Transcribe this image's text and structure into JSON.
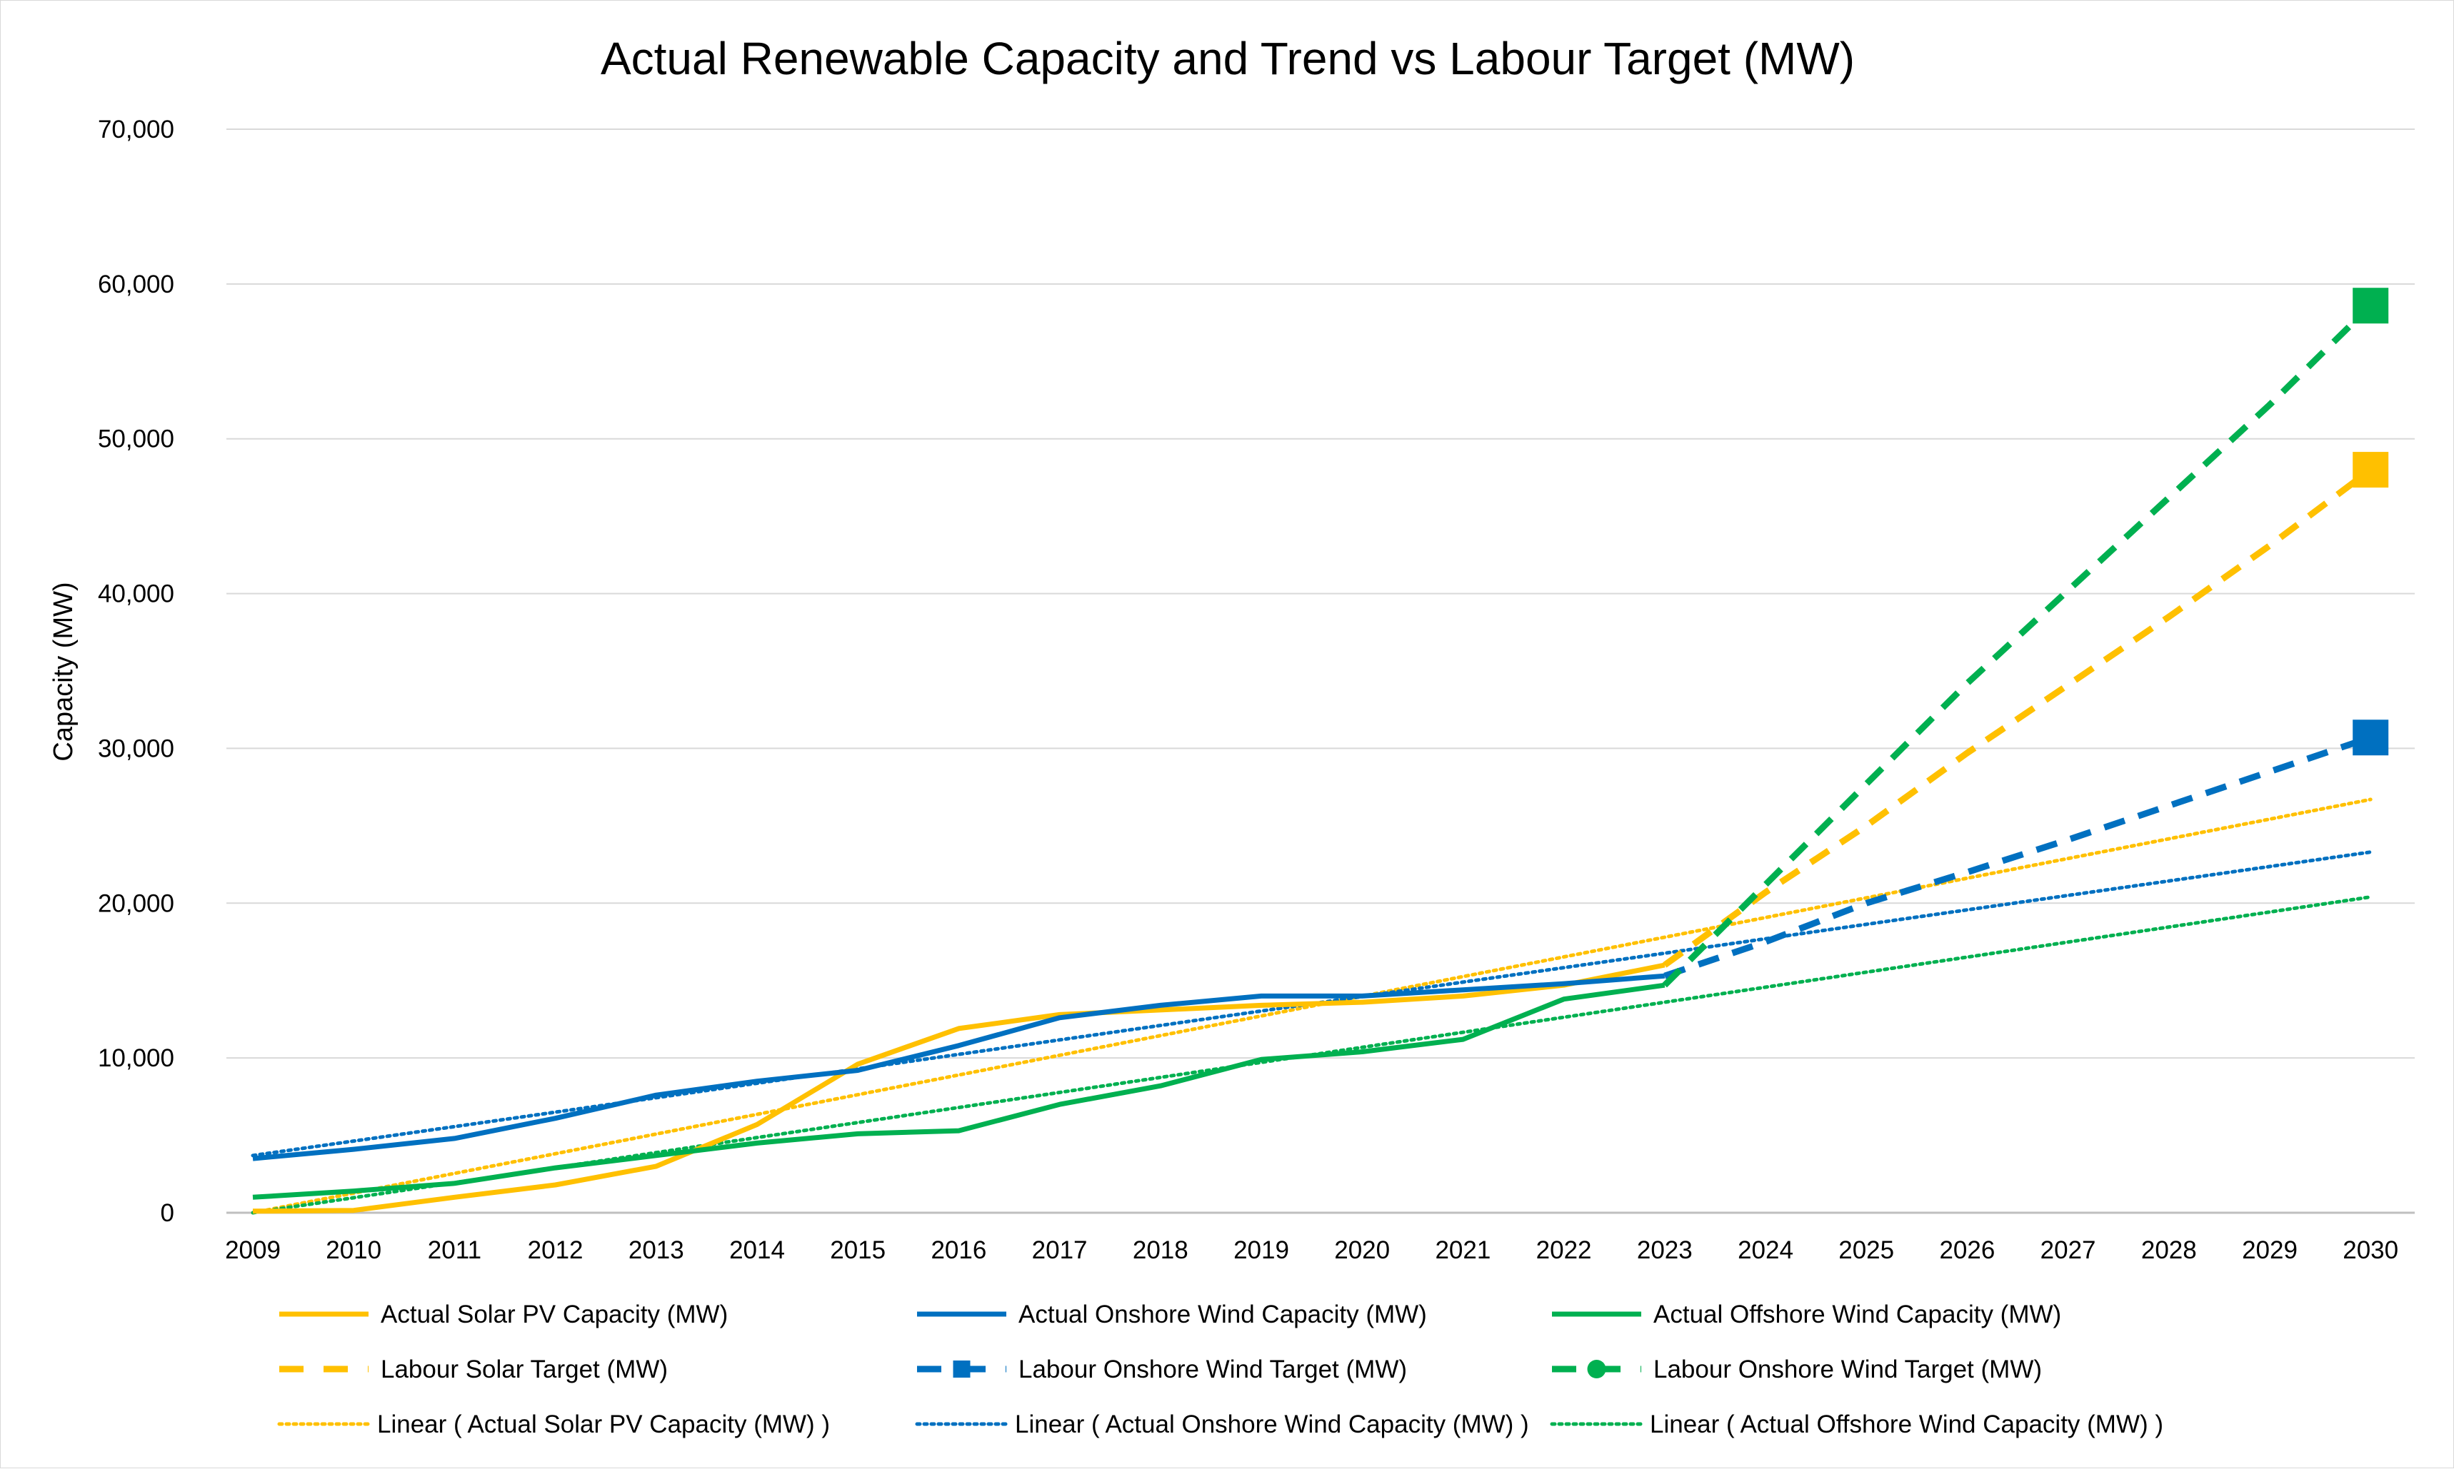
{
  "chart_data": {
    "type": "line",
    "title": "Actual Renewable Capacity and Trend vs Labour Target (MW)",
    "xlabel": "",
    "ylabel": "Capacity (MW)",
    "ylim": [
      0,
      70000
    ],
    "y_ticks": [
      "0",
      "10,000",
      "20,000",
      "30,000",
      "40,000",
      "50,000",
      "60,000",
      "70,000"
    ],
    "categories": [
      "2009",
      "2010",
      "2011",
      "2012",
      "2013",
      "2014",
      "2015",
      "2016",
      "2017",
      "2018",
      "2019",
      "2020",
      "2021",
      "2022",
      "2023",
      "2024",
      "2025",
      "2026",
      "2027",
      "2028",
      "2029",
      "2030"
    ],
    "grid": true,
    "legend_position": "bottom",
    "colors": {
      "solar": "#FFC000",
      "onshore": "#0070C0",
      "offshore": "#00B050",
      "grid": "#d9d9d9",
      "axis": "#bfbfbf"
    },
    "series": [
      {
        "name": "Actual Solar PV Capacity (MW)",
        "style": "solid",
        "color": "#FFC000",
        "values": [
          100,
          150,
          1000,
          1800,
          3000,
          5700,
          9600,
          11900,
          12800,
          13100,
          13400,
          13600,
          14000,
          14700,
          16000,
          null,
          null,
          null,
          null,
          null,
          null,
          null
        ]
      },
      {
        "name": "Actual Onshore Wind Capacity (MW)",
        "style": "solid",
        "color": "#0070C0",
        "values": [
          3500,
          4100,
          4800,
          6100,
          7600,
          8500,
          9200,
          10800,
          12600,
          13400,
          14000,
          14000,
          14400,
          14800,
          15300,
          null,
          null,
          null,
          null,
          null,
          null,
          null
        ]
      },
      {
        "name": "Actual Offshore Wind Capacity (MW)",
        "style": "solid",
        "color": "#00B050",
        "values": [
          1000,
          1400,
          1900,
          2900,
          3700,
          4500,
          5100,
          5300,
          7000,
          8200,
          9900,
          10400,
          11200,
          13800,
          14700,
          null,
          null,
          null,
          null,
          null,
          null,
          null
        ]
      },
      {
        "name": "Labour Solar Target (MW)",
        "style": "dash",
        "marker": "square",
        "color": "#FFC000",
        "values": [
          null,
          null,
          null,
          null,
          null,
          null,
          null,
          null,
          null,
          null,
          null,
          null,
          null,
          null,
          16000,
          20700,
          25000,
          29700,
          34100,
          38500,
          43100,
          48000
        ]
      },
      {
        "name": "Labour Onshore Wind Target (MW)",
        "style": "dash",
        "marker": "square",
        "color": "#0070C0",
        "values": [
          null,
          null,
          null,
          null,
          null,
          null,
          null,
          null,
          null,
          null,
          null,
          null,
          null,
          null,
          15300,
          17500,
          20000,
          22000,
          24100,
          26300,
          28500,
          30700
        ]
      },
      {
        "name": "Labour Onshore Wind Target (MW)",
        "style": "dash",
        "marker": "square",
        "color": "#00B050",
        "values": [
          null,
          null,
          null,
          null,
          null,
          null,
          null,
          null,
          null,
          null,
          null,
          null,
          null,
          null,
          14700,
          21200,
          27700,
          34200,
          40200,
          46200,
          52200,
          58600
        ]
      },
      {
        "name": "Linear ( Actual Solar PV Capacity (MW) )",
        "style": "dot",
        "color": "#FFC000",
        "values": [
          0,
          null,
          null,
          null,
          null,
          null,
          null,
          null,
          null,
          null,
          null,
          null,
          null,
          null,
          null,
          null,
          null,
          null,
          null,
          null,
          null,
          26700
        ]
      },
      {
        "name": "Linear ( Actual Onshore Wind Capacity (MW) )",
        "style": "dot",
        "color": "#0070C0",
        "values": [
          3700,
          null,
          null,
          null,
          null,
          null,
          null,
          null,
          null,
          null,
          null,
          null,
          null,
          null,
          null,
          null,
          null,
          null,
          null,
          null,
          null,
          23300
        ]
      },
      {
        "name": "Linear ( Actual Offshore Wind Capacity (MW) )",
        "style": "dot",
        "color": "#00B050",
        "values": [
          0,
          null,
          null,
          null,
          null,
          null,
          null,
          null,
          null,
          null,
          null,
          null,
          null,
          null,
          null,
          null,
          null,
          null,
          null,
          null,
          null,
          20400
        ]
      }
    ],
    "legend": [
      {
        "label": "Actual Solar PV Capacity (MW)",
        "color": "#FFC000",
        "style": "solid",
        "marker": "none"
      },
      {
        "label": "Actual Onshore Wind Capacity (MW)",
        "color": "#0070C0",
        "style": "solid",
        "marker": "none"
      },
      {
        "label": "Actual Offshore Wind Capacity (MW)",
        "color": "#00B050",
        "style": "solid",
        "marker": "none"
      },
      {
        "label": "Labour Solar Target (MW)",
        "color": "#FFC000",
        "style": "dash",
        "marker": "none"
      },
      {
        "label": "Labour Onshore Wind Target (MW)",
        "color": "#0070C0",
        "style": "dash",
        "marker": "square"
      },
      {
        "label": "Labour Onshore Wind Target (MW)",
        "color": "#00B050",
        "style": "dash",
        "marker": "circle"
      },
      {
        "label": "Linear ( Actual Solar PV Capacity (MW) )",
        "color": "#FFC000",
        "style": "dot",
        "marker": "none"
      },
      {
        "label": "Linear ( Actual Onshore Wind Capacity (MW) )",
        "color": "#0070C0",
        "style": "dot",
        "marker": "none"
      },
      {
        "label": "Linear ( Actual Offshore Wind Capacity (MW) )",
        "color": "#00B050",
        "style": "dot",
        "marker": "none"
      }
    ]
  }
}
